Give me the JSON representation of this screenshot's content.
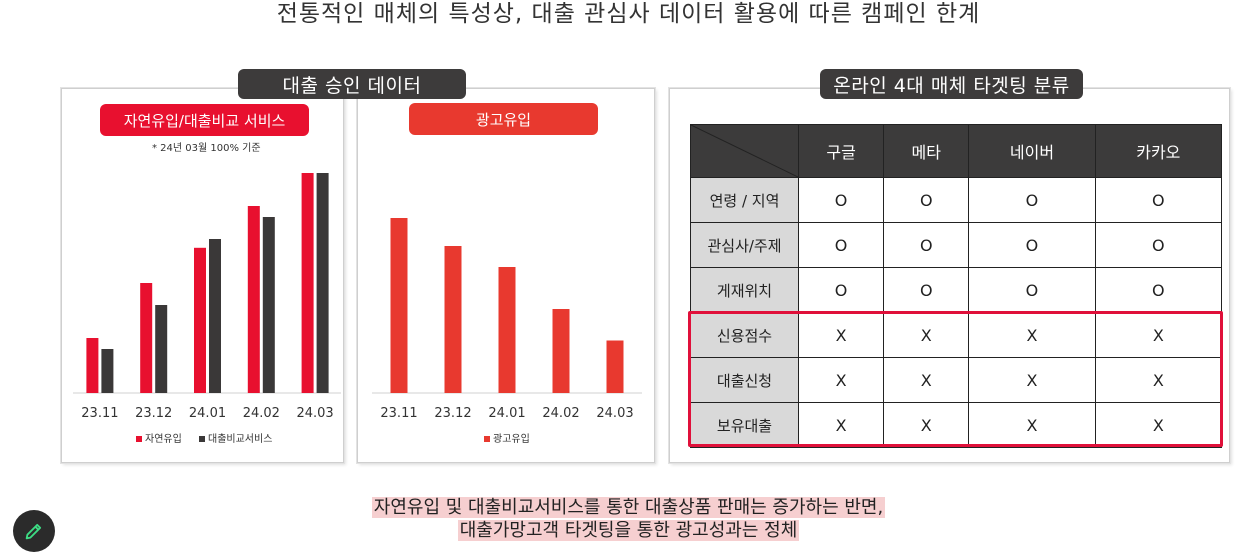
{
  "page": {
    "title": "전통적인 매체의 특성상, 대출 관심사 데이터 활용에 따른 캠페인 한계",
    "conclusion_line1": "자연유입 및 대출비교서비스를 통한 대출상품 판매는 증가하는 반면,",
    "conclusion_line2": "대출가망고객 타겟팅을 통한 광고성과는 정체"
  },
  "left_section": {
    "pill": "대출 승인 데이터",
    "chart1_title": "자연유입/대출비교 서비스",
    "chart1_note": "* 24년 03월 100% 기준",
    "chart2_title": "광고유입"
  },
  "right_section": {
    "pill": "온라인 4대 매체 타겟팅 분류",
    "columns": [
      "구글",
      "메타",
      "네이버",
      "카카오"
    ],
    "rows": [
      {
        "label": "연령 / 지역",
        "values": [
          "O",
          "O",
          "O",
          "O"
        ]
      },
      {
        "label": "관심사/주제",
        "values": [
          "O",
          "O",
          "O",
          "O"
        ]
      },
      {
        "label": "게재위치",
        "values": [
          "O",
          "O",
          "O",
          "O"
        ]
      },
      {
        "label": "신용점수",
        "values": [
          "X",
          "X",
          "X",
          "X"
        ]
      },
      {
        "label": "대출신청",
        "values": [
          "X",
          "X",
          "X",
          "X"
        ]
      },
      {
        "label": "보유대출",
        "values": [
          "X",
          "X",
          "X",
          "X"
        ]
      }
    ]
  },
  "chart_data": [
    {
      "type": "bar",
      "title": "자연유입/대출비교 서비스",
      "subtitle": "* 24년 03월 100% 기준",
      "categories": [
        "23.11",
        "23.12",
        "24.01",
        "24.02",
        "24.03"
      ],
      "series": [
        {
          "name": "자연유입",
          "color": "#e8102f",
          "values": [
            25,
            50,
            66,
            85,
            100
          ]
        },
        {
          "name": "대출비교서비스",
          "color": "#3a3838",
          "values": [
            20,
            40,
            70,
            80,
            100
          ]
        }
      ],
      "ylim": [
        0,
        100
      ],
      "legend": "bottom",
      "grid": false
    },
    {
      "type": "bar",
      "title": "광고유입",
      "categories": [
        "23.11",
        "23.12",
        "24.01",
        "24.02",
        "24.03"
      ],
      "series": [
        {
          "name": "광고유입",
          "color": "#e8392f",
          "values": [
            100,
            84,
            72,
            48,
            30
          ]
        }
      ],
      "ylim": [
        0,
        100
      ],
      "legend": "bottom",
      "grid": false
    }
  ],
  "colors": {
    "accent_red": "#e8102f",
    "dark": "#3a3838",
    "highlight": "#e0103a",
    "conclusion_bg": "#f6cfd0"
  },
  "icons": {
    "fab": "pencil-icon"
  }
}
